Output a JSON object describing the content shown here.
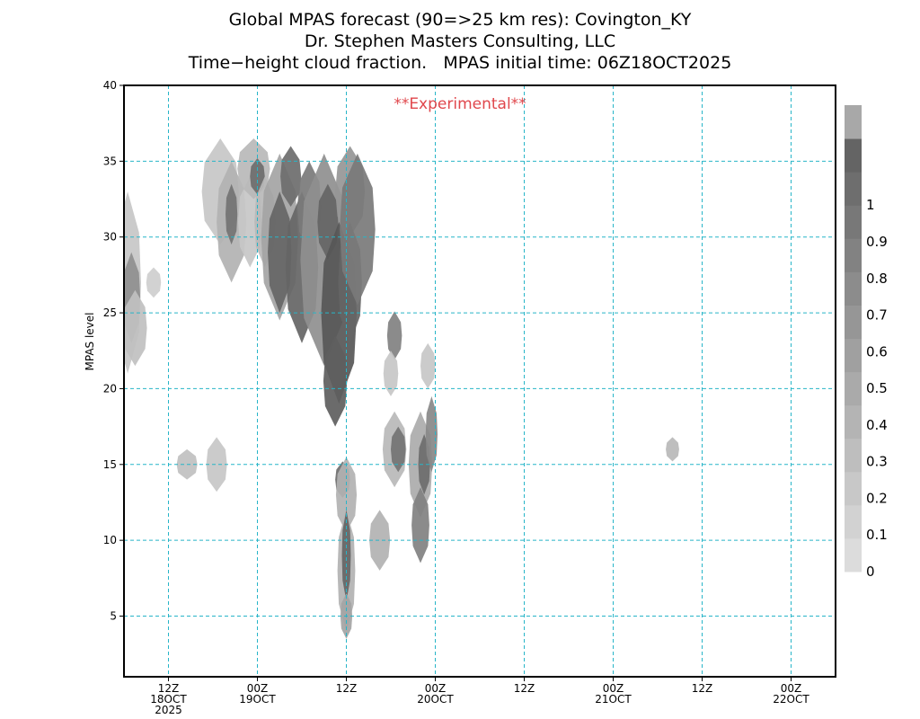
{
  "title_lines": [
    "Global MPAS forecast (90=>25 km res): Covington_KY",
    "Dr. Stephen Masters Consulting, LLC",
    "Time−height cloud fraction.   MPAS initial time: 06Z18OCT2025"
  ],
  "watermark": "**Experimental**",
  "chart_data": {
    "type": "heatmap",
    "ylabel": "MPAS level",
    "xlabel": "",
    "xlim_hours_from_init": [
      0,
      96
    ],
    "ylim": [
      1,
      40
    ],
    "yticks": [
      5,
      10,
      15,
      20,
      25,
      30,
      35,
      40
    ],
    "xticks": [
      {
        "hour": 6,
        "lines": [
          "12Z",
          "18OCT",
          "2025"
        ]
      },
      {
        "hour": 18,
        "lines": [
          "00Z",
          "19OCT"
        ]
      },
      {
        "hour": 30,
        "lines": [
          "12Z"
        ]
      },
      {
        "hour": 42,
        "lines": [
          "00Z",
          "20OCT"
        ]
      },
      {
        "hour": 54,
        "lines": [
          "12Z"
        ]
      },
      {
        "hour": 66,
        "lines": [
          "00Z",
          "21OCT"
        ]
      },
      {
        "hour": 78,
        "lines": [
          "12Z"
        ]
      },
      {
        "hour": 90,
        "lines": [
          "00Z",
          "22OCT"
        ]
      }
    ],
    "grid": true,
    "colorbar": {
      "labels": [
        "0",
        "0.1",
        "0.2",
        "0.3",
        "0.4",
        "0.5",
        "0.6",
        "0.7",
        "0.8",
        "0.9",
        "1"
      ],
      "colors": [
        "#dcdcdc",
        "#d2d2d2",
        "#c8c8c8",
        "#bebebe",
        "#b4b4b4",
        "#aaaaaa",
        "#a0a0a0",
        "#969696",
        "#8c8c8c",
        "#828282",
        "#787878",
        "#6e6e6e",
        "#646464",
        "#a8a8a8"
      ]
    },
    "cloud_cells": [
      {
        "hour": 0.5,
        "level": 27,
        "dh": 1.8,
        "dl": 6,
        "frac": 0.15
      },
      {
        "hour": 1,
        "level": 26,
        "dh": 1.2,
        "dl": 3,
        "frac": 0.55
      },
      {
        "hour": 1.5,
        "level": 24,
        "dh": 1.6,
        "dl": 2.5,
        "frac": 0.2
      },
      {
        "hour": 4,
        "level": 27,
        "dh": 1,
        "dl": 1,
        "frac": 0.1
      },
      {
        "hour": 8.5,
        "level": 15,
        "dh": 1.4,
        "dl": 1,
        "frac": 0.2
      },
      {
        "hour": 12.5,
        "level": 15,
        "dh": 1.4,
        "dl": 1.8,
        "frac": 0.15
      },
      {
        "hour": 13,
        "level": 33,
        "dh": 2.5,
        "dl": 3.5,
        "frac": 0.15
      },
      {
        "hour": 14.5,
        "level": 31,
        "dh": 2,
        "dl": 4,
        "frac": 0.3
      },
      {
        "hour": 14.5,
        "level": 31.5,
        "dh": 0.8,
        "dl": 2,
        "frac": 0.75
      },
      {
        "hour": 17,
        "level": 31,
        "dh": 1.6,
        "dl": 3,
        "frac": 0.15
      },
      {
        "hour": 17.5,
        "level": 34.5,
        "dh": 2.2,
        "dl": 2,
        "frac": 0.25
      },
      {
        "hour": 18,
        "level": 34,
        "dh": 1,
        "dl": 1.2,
        "frac": 0.8
      },
      {
        "hour": 19,
        "level": 31,
        "dh": 1.4,
        "dl": 3,
        "frac": 0.25
      },
      {
        "hour": 21,
        "level": 30,
        "dh": 2.5,
        "dl": 5.5,
        "frac": 0.4
      },
      {
        "hour": 21,
        "level": 29,
        "dh": 1.6,
        "dl": 4,
        "frac": 0.85
      },
      {
        "hour": 22.5,
        "level": 34,
        "dh": 1.4,
        "dl": 2,
        "frac": 0.8
      },
      {
        "hour": 24,
        "level": 28,
        "dh": 2.2,
        "dl": 5,
        "frac": 0.85
      },
      {
        "hour": 25,
        "level": 32,
        "dh": 1.6,
        "dl": 3,
        "frac": 0.7
      },
      {
        "hour": 27,
        "level": 28.5,
        "dh": 3.2,
        "dl": 7,
        "frac": 0.55
      },
      {
        "hour": 27.5,
        "level": 31,
        "dh": 1.4,
        "dl": 2.5,
        "frac": 0.85
      },
      {
        "hour": 29,
        "level": 25,
        "dh": 2.4,
        "dl": 6,
        "frac": 0.95
      },
      {
        "hour": 28.5,
        "level": 20.5,
        "dh": 1.6,
        "dl": 3,
        "frac": 0.9
      },
      {
        "hour": 30.5,
        "level": 33,
        "dh": 2,
        "dl": 3,
        "frac": 0.5
      },
      {
        "hour": 30.5,
        "level": 27,
        "dh": 1.6,
        "dl": 4,
        "frac": 0.85
      },
      {
        "hour": 31.5,
        "level": 30.5,
        "dh": 2.4,
        "dl": 5,
        "frac": 0.7
      },
      {
        "hour": 29.5,
        "level": 14,
        "dh": 1,
        "dl": 1.2,
        "frac": 0.8
      },
      {
        "hour": 30,
        "level": 13,
        "dh": 1.4,
        "dl": 2.5,
        "frac": 0.3
      },
      {
        "hour": 30,
        "level": 8,
        "dh": 1.2,
        "dl": 4,
        "frac": 0.3
      },
      {
        "hour": 30,
        "level": 9,
        "dh": 0.6,
        "dl": 3,
        "frac": 0.85
      },
      {
        "hour": 30,
        "level": 5,
        "dh": 0.8,
        "dl": 1.5,
        "frac": 0.4
      },
      {
        "hour": 34.5,
        "level": 10,
        "dh": 1.4,
        "dl": 2,
        "frac": 0.3
      },
      {
        "hour": 36.5,
        "level": 16,
        "dh": 1.6,
        "dl": 2.5,
        "frac": 0.25
      },
      {
        "hour": 37,
        "level": 16,
        "dh": 1,
        "dl": 1.5,
        "frac": 0.75
      },
      {
        "hour": 36.5,
        "level": 23.5,
        "dh": 1,
        "dl": 1.6,
        "frac": 0.65
      },
      {
        "hour": 36,
        "level": 21,
        "dh": 1,
        "dl": 1.5,
        "frac": 0.15
      },
      {
        "hour": 40,
        "level": 15,
        "dh": 1.6,
        "dl": 3.5,
        "frac": 0.35
      },
      {
        "hour": 40,
        "level": 11,
        "dh": 1.2,
        "dl": 2.5,
        "frac": 0.65
      },
      {
        "hour": 40.5,
        "level": 15,
        "dh": 0.8,
        "dl": 2,
        "frac": 0.8
      },
      {
        "hour": 41,
        "level": 21.5,
        "dh": 1,
        "dl": 1.5,
        "frac": 0.15
      },
      {
        "hour": 41.5,
        "level": 17,
        "dh": 0.8,
        "dl": 2.5,
        "frac": 0.6
      },
      {
        "hour": 74,
        "level": 16,
        "dh": 0.9,
        "dl": 0.8,
        "frac": 0.25
      }
    ]
  }
}
